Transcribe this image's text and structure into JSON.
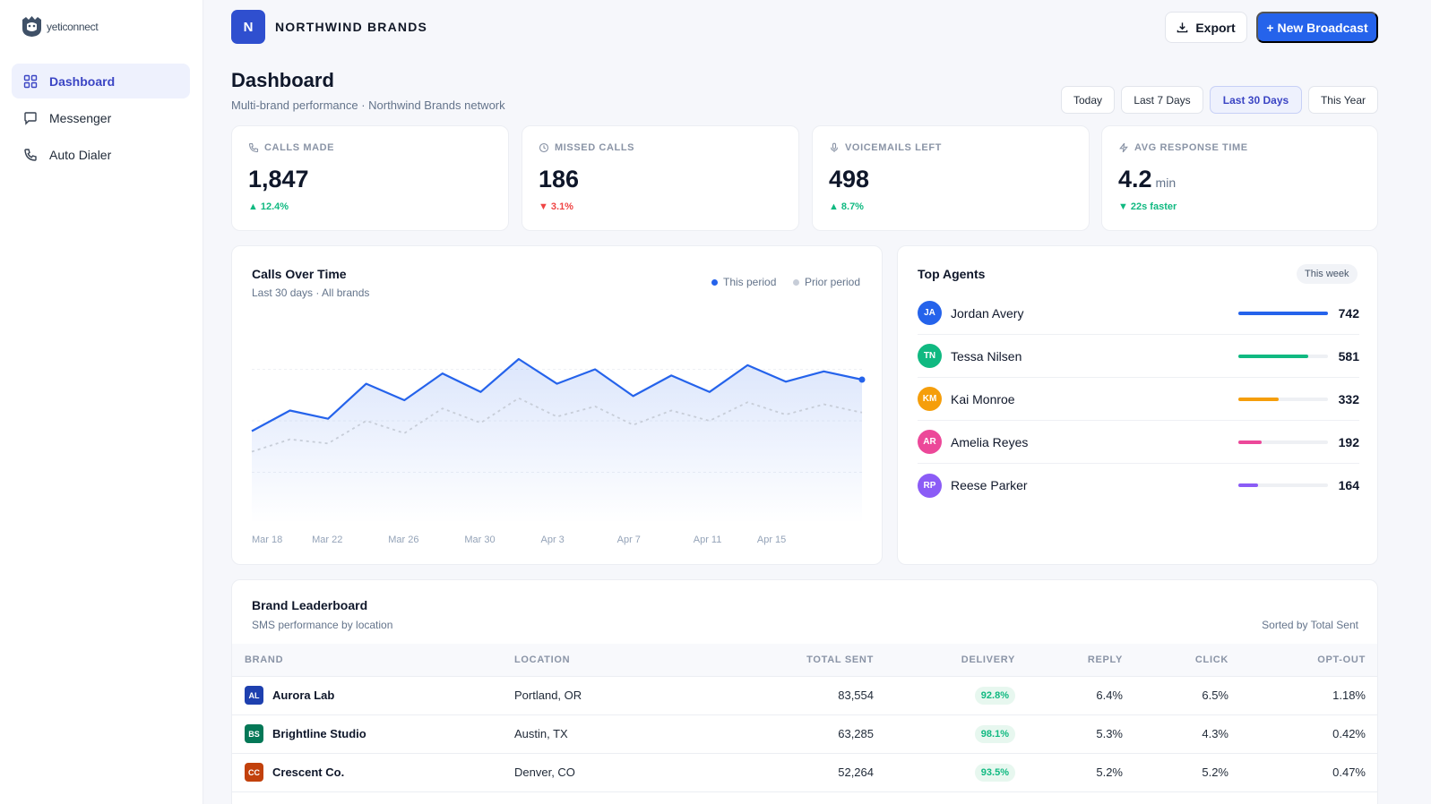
{
  "app": {
    "logo_text": "yeticonnect"
  },
  "sidebar": {
    "items": [
      {
        "label": "Dashboard",
        "icon": "grid-icon",
        "active": true
      },
      {
        "label": "Messenger",
        "icon": "message-icon",
        "active": false
      },
      {
        "label": "Auto Dialer",
        "icon": "phone-icon",
        "active": false
      }
    ]
  },
  "header": {
    "brand_initial": "N",
    "brand_name": "NORTHWIND BRANDS",
    "export_label": "Export",
    "new_broadcast_label": "+ New Broadcast"
  },
  "page": {
    "title": "Dashboard",
    "subtitle": "Multi-brand performance · Northwind Brands network"
  },
  "ranges": [
    {
      "label": "Today",
      "active": false
    },
    {
      "label": "Last 7 Days",
      "active": false
    },
    {
      "label": "Last 30 Days",
      "active": true
    },
    {
      "label": "This Year",
      "active": false
    }
  ],
  "stats": [
    {
      "label": "CALLS MADE",
      "icon": "phone-icon",
      "value": "1,847",
      "unit": "",
      "delta": "12.4%",
      "direction": "up",
      "tone": "good"
    },
    {
      "label": "MISSED CALLS",
      "icon": "clock-icon",
      "value": "186",
      "unit": "",
      "delta": "3.1%",
      "direction": "down",
      "tone": "bad"
    },
    {
      "label": "VOICEMAILS LEFT",
      "icon": "mic-icon",
      "value": "498",
      "unit": "",
      "delta": "8.7%",
      "direction": "up",
      "tone": "good"
    },
    {
      "label": "AVG RESPONSE TIME",
      "icon": "bolt-icon",
      "value": "4.2",
      "unit": "min",
      "delta": "22s faster",
      "direction": "down",
      "tone": "good"
    }
  ],
  "chart": {
    "title": "Calls Over Time",
    "subtitle": "Last 30 days · All brands",
    "legend_current": "This period",
    "legend_prior": "Prior period",
    "colors": {
      "current": "#2563eb",
      "prior": "#c7cdd8"
    }
  },
  "chart_data": {
    "type": "area",
    "x": [
      "Mar 18",
      "Mar 20",
      "Mar 22",
      "Mar 24",
      "Mar 26",
      "Mar 28",
      "Mar 30",
      "Apr 1",
      "Apr 3",
      "Apr 5",
      "Apr 7",
      "Apr 9",
      "Apr 11",
      "Apr 13",
      "Apr 15",
      "Apr 17",
      "Apr 18"
    ],
    "x_ticks": [
      "Mar 18",
      "Mar 22",
      "Mar 26",
      "Mar 30",
      "Apr 3",
      "Apr 7",
      "Apr 11",
      "Apr 15"
    ],
    "series": [
      {
        "name": "This period",
        "values": [
          45,
          55,
          51,
          68,
          60,
          73,
          64,
          80,
          68,
          75,
          62,
          72,
          64,
          77,
          69,
          74,
          70
        ]
      },
      {
        "name": "Prior period",
        "values": [
          35,
          41,
          39,
          50,
          44,
          56,
          49,
          61,
          52,
          57,
          48,
          55,
          50,
          59,
          53,
          58,
          54
        ]
      }
    ],
    "ylim": [
      0,
      100
    ],
    "grid": true
  },
  "agents": {
    "title": "Top Agents",
    "period": "This week",
    "max": 742,
    "list": [
      {
        "initials": "JA",
        "name": "Jordan Avery",
        "value": 742,
        "color": "#2563eb"
      },
      {
        "initials": "TN",
        "name": "Tessa Nilsen",
        "value": 581,
        "color": "#10b981"
      },
      {
        "initials": "KM",
        "name": "Kai Monroe",
        "value": 332,
        "color": "#f59e0b"
      },
      {
        "initials": "AR",
        "name": "Amelia Reyes",
        "value": 192,
        "color": "#ec4899"
      },
      {
        "initials": "RP",
        "name": "Reese Parker",
        "value": 164,
        "color": "#8b5cf6"
      }
    ]
  },
  "leaderboard": {
    "title": "Brand Leaderboard",
    "subtitle": "SMS performance by location",
    "sorted_by": "Sorted by Total Sent",
    "columns": [
      "BRAND",
      "LOCATION",
      "TOTAL SENT",
      "DELIVERY",
      "REPLY",
      "CLICK",
      "OPT-OUT"
    ],
    "rows": [
      {
        "initials": "AL",
        "brand": "Aurora Lab",
        "color": "#1e40af",
        "location": "Portland, OR",
        "total_sent": "83,554",
        "delivery": "92.8%",
        "reply": "6.4%",
        "click": "6.5%",
        "opt_out": "1.18%"
      },
      {
        "initials": "BS",
        "brand": "Brightline Studio",
        "color": "#047857",
        "location": "Austin, TX",
        "total_sent": "63,285",
        "delivery": "98.1%",
        "reply": "5.3%",
        "click": "4.3%",
        "opt_out": "0.42%"
      },
      {
        "initials": "CC",
        "brand": "Crescent Co.",
        "color": "#c2410c",
        "location": "Denver, CO",
        "total_sent": "52,264",
        "delivery": "93.5%",
        "reply": "5.2%",
        "click": "5.2%",
        "opt_out": "0.47%"
      }
    ]
  }
}
